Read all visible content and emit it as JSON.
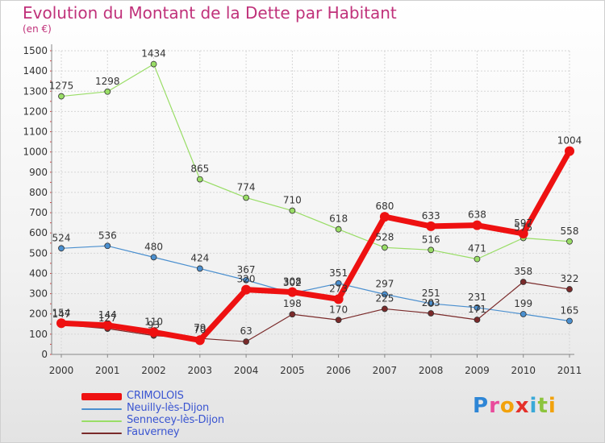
{
  "chart_data": {
    "type": "line",
    "title": "Evolution du Montant de la Dette par Habitant",
    "subtitle": "(en €)",
    "x": [
      "2000",
      "2001",
      "2002",
      "2003",
      "2004",
      "2005",
      "2006",
      "2007",
      "2008",
      "2009",
      "2010",
      "2011"
    ],
    "yticks": [
      "0",
      "100",
      "200",
      "300",
      "400",
      "500",
      "600",
      "700",
      "800",
      "900",
      "1000",
      "1100",
      "1200",
      "1300",
      "1400",
      "1500"
    ],
    "ylim": [
      0,
      1500
    ],
    "grid": true,
    "legend_position": "bottom-left",
    "series": [
      {
        "name": "CRIMOLOIS",
        "color": "#ee1111",
        "values": [
          154,
          144,
          110,
          70,
          320,
          308,
          273,
          680,
          633,
          638,
          597,
          1004
        ],
        "labels": [
          "154",
          "144",
          "110",
          "70",
          "320",
          "308",
          "273",
          "680",
          "633",
          "638",
          "597",
          "1004"
        ]
      },
      {
        "name": "Neuilly-lès-Dijon",
        "color": "#4a8fcf",
        "values": [
          524,
          536,
          480,
          424,
          367,
          302,
          351,
          297,
          251,
          231,
          199,
          165
        ],
        "labels": [
          "524",
          "536",
          "480",
          "424",
          "367",
          "302",
          "351",
          "297",
          "251",
          "231",
          "199",
          "165"
        ]
      },
      {
        "name": "Sennecey-lès-Dijon",
        "color": "#99dd66",
        "values": [
          1275,
          1298,
          1434,
          865,
          774,
          710,
          618,
          528,
          516,
          471,
          575,
          558
        ],
        "labels": [
          "1275",
          "1298",
          "1434",
          "865",
          "774",
          "710",
          "618",
          "528",
          "516",
          "471",
          "575",
          "558"
        ]
      },
      {
        "name": "Fauverney",
        "color": "#7a2a2a",
        "values": [
          147,
          127,
          93,
          79,
          63,
          198,
          170,
          225,
          203,
          171,
          358,
          322
        ],
        "labels": [
          "147",
          "127",
          "93",
          "79",
          "63",
          "198",
          "170",
          "225",
          "203",
          "171",
          "358",
          "322"
        ]
      }
    ]
  },
  "logo": {
    "letters": [
      "P",
      "r",
      "o",
      "x",
      "i",
      "t",
      "i"
    ]
  }
}
